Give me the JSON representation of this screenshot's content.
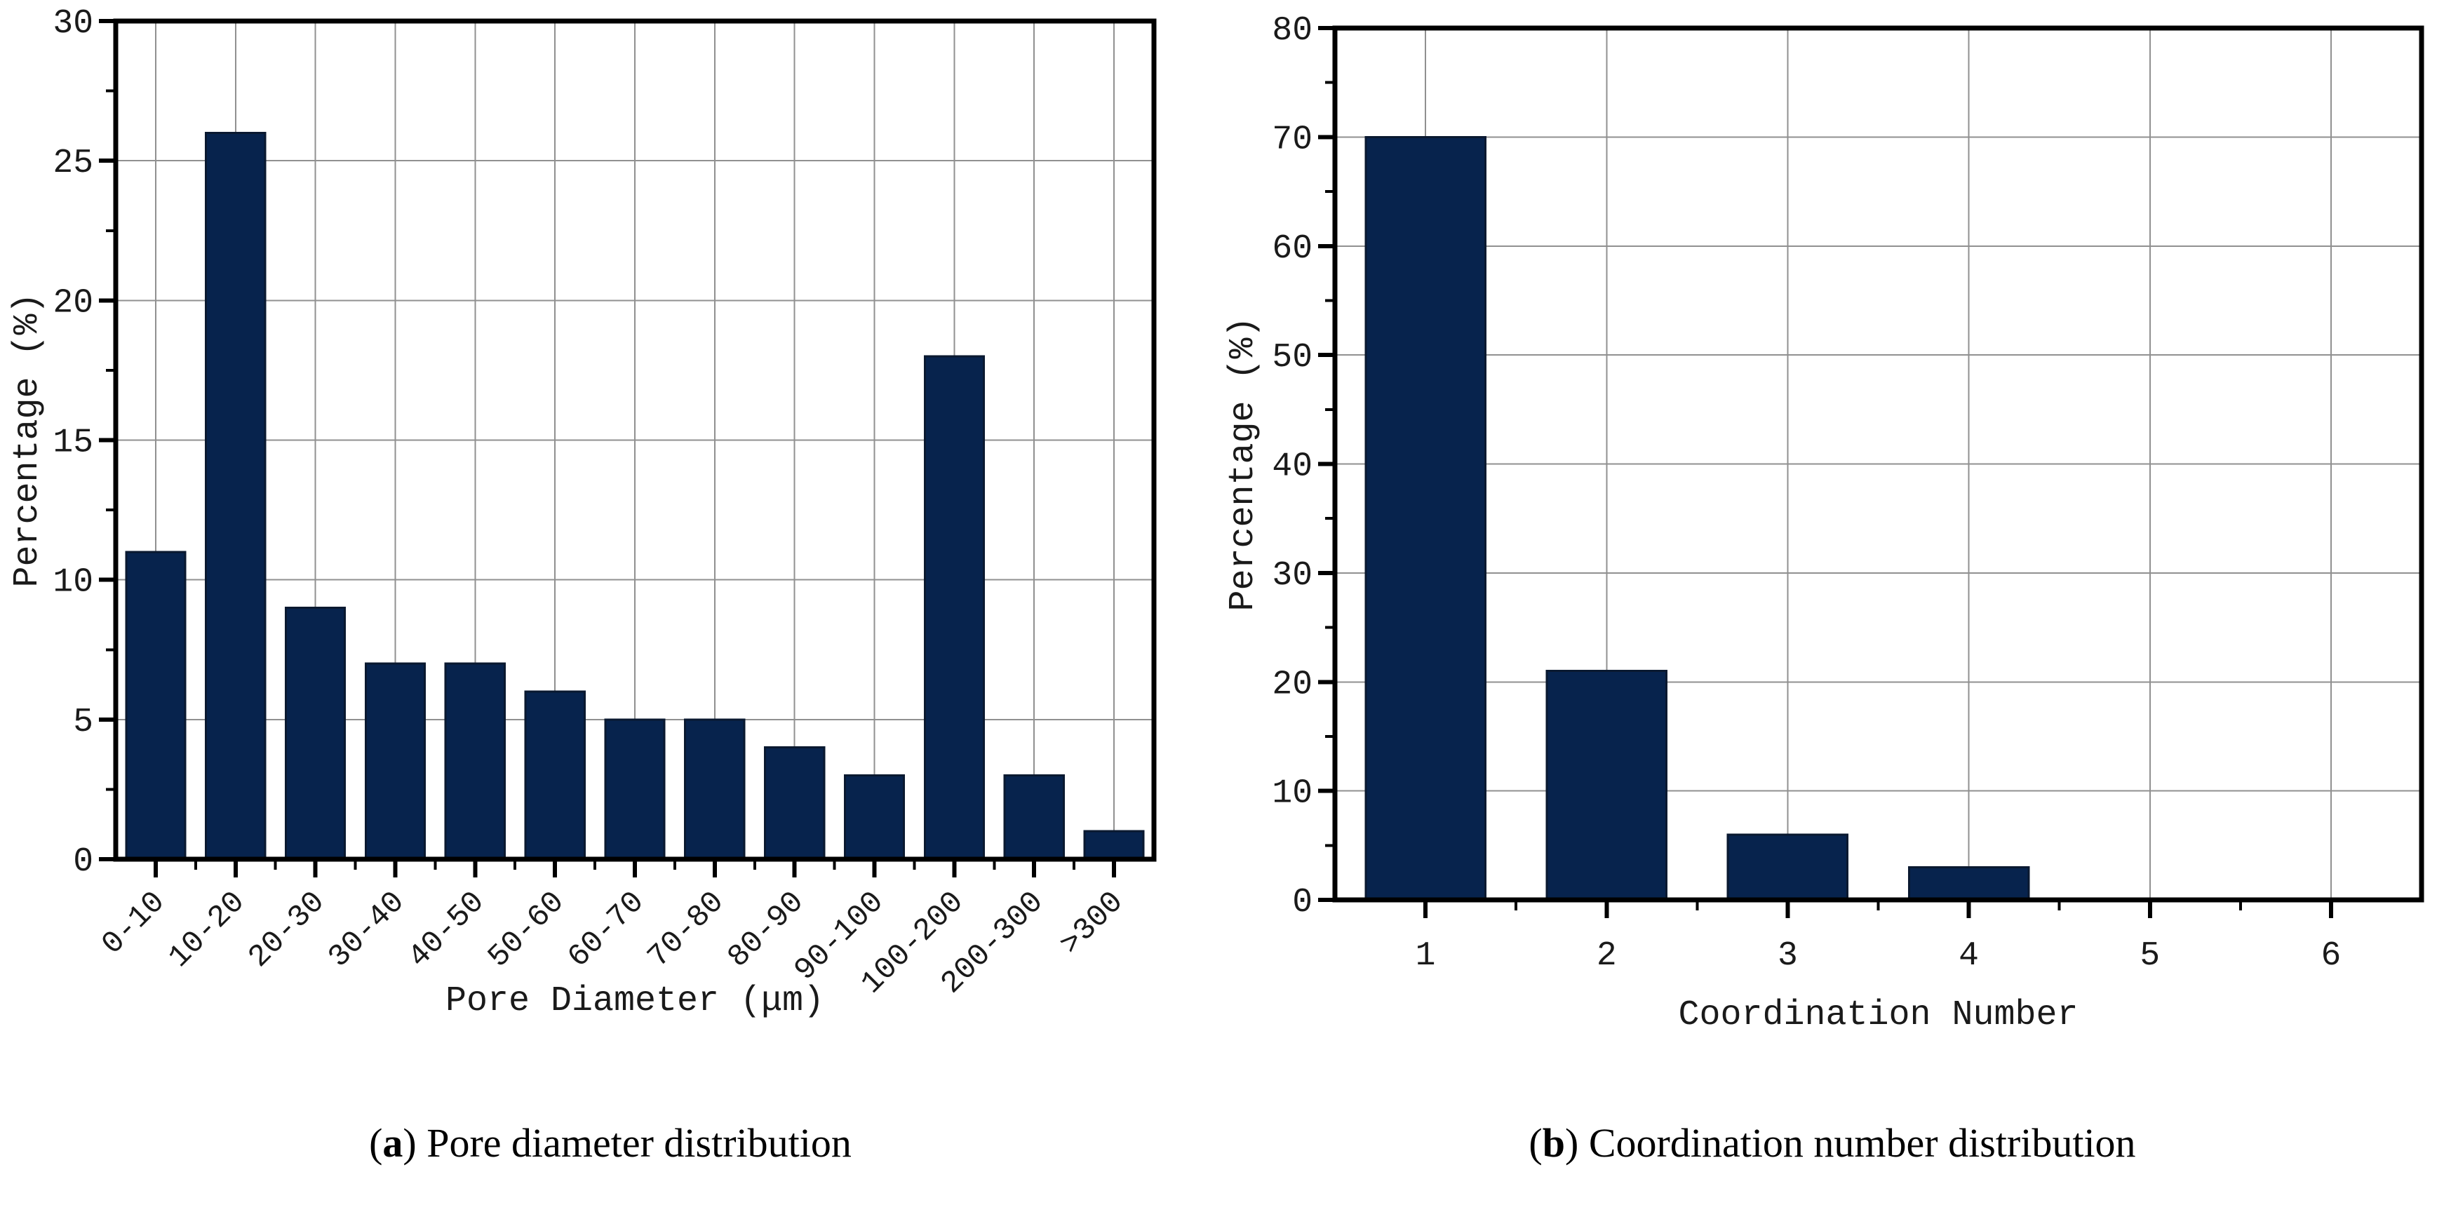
{
  "colors": {
    "bar_fill": "#07234d",
    "bar_edge": "#0a1930",
    "grid": "#909090",
    "axis": "#000000",
    "text": "#1a1a1a"
  },
  "chart_data": [
    {
      "id": "a",
      "type": "bar",
      "title": "",
      "categories": [
        "0-10",
        "10-20",
        "20-30",
        "30-40",
        "40-50",
        "50-60",
        "60-70",
        "70-80",
        "80-90",
        "90-100",
        "100-200",
        "200-300",
        ">300"
      ],
      "values": [
        11,
        26,
        9,
        7,
        7,
        6,
        5,
        5,
        4,
        3,
        18,
        3,
        1
      ],
      "xlabel": "Pore Diameter (μm)",
      "ylabel": "Percentage (%)",
      "ylim": [
        0,
        30
      ],
      "yticks": [
        0,
        5,
        10,
        15,
        20,
        25,
        30
      ],
      "y_minor_step": 2.5,
      "x_tick_rotation": 45,
      "grid": true,
      "legend": null,
      "caption": {
        "open": "(",
        "label": "a",
        "close": ")",
        "text": "Pore diameter distribution"
      }
    },
    {
      "id": "b",
      "type": "bar",
      "title": "",
      "categories": [
        "1",
        "2",
        "3",
        "4",
        "5",
        "6"
      ],
      "values": [
        70,
        21,
        6,
        3,
        0,
        0
      ],
      "xlabel": "Coordination Number",
      "ylabel": "Percentage (%)",
      "ylim": [
        0,
        80
      ],
      "yticks": [
        0,
        10,
        20,
        30,
        40,
        50,
        60,
        70,
        80
      ],
      "y_minor_step": 5,
      "x_tick_rotation": 0,
      "grid": true,
      "legend": null,
      "caption": {
        "open": "(",
        "label": "b",
        "close": ")",
        "text": "Coordination number distribution"
      }
    }
  ]
}
